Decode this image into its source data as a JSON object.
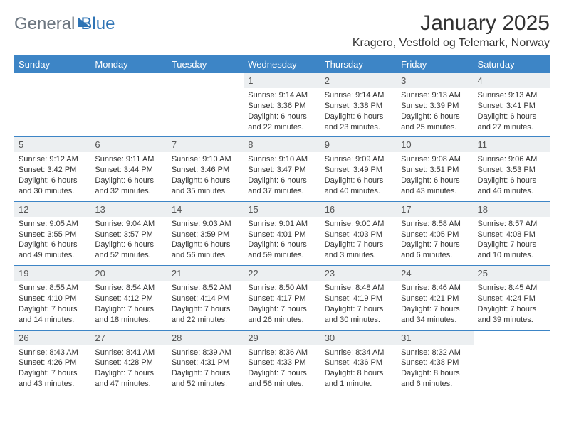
{
  "brand": {
    "word1": "General",
    "word2": "Blue"
  },
  "title": "January 2025",
  "location": "Kragero, Vestfold og Telemark, Norway",
  "colors": {
    "header_bg": "#3d85c6",
    "header_text": "#ffffff",
    "daynum_bg": "#eceff1",
    "row_border": "#3d85c6",
    "logo_gray": "#6c7680",
    "logo_blue": "#2f74b5",
    "page_bg": "#ffffff"
  },
  "weekdays": [
    "Sunday",
    "Monday",
    "Tuesday",
    "Wednesday",
    "Thursday",
    "Friday",
    "Saturday"
  ],
  "weeks": [
    [
      {
        "empty": true
      },
      {
        "empty": true
      },
      {
        "empty": true
      },
      {
        "day": "1",
        "sunrise": "Sunrise: 9:14 AM",
        "sunset": "Sunset: 3:36 PM",
        "d1": "Daylight: 6 hours",
        "d2": "and 22 minutes."
      },
      {
        "day": "2",
        "sunrise": "Sunrise: 9:14 AM",
        "sunset": "Sunset: 3:38 PM",
        "d1": "Daylight: 6 hours",
        "d2": "and 23 minutes."
      },
      {
        "day": "3",
        "sunrise": "Sunrise: 9:13 AM",
        "sunset": "Sunset: 3:39 PM",
        "d1": "Daylight: 6 hours",
        "d2": "and 25 minutes."
      },
      {
        "day": "4",
        "sunrise": "Sunrise: 9:13 AM",
        "sunset": "Sunset: 3:41 PM",
        "d1": "Daylight: 6 hours",
        "d2": "and 27 minutes."
      }
    ],
    [
      {
        "day": "5",
        "sunrise": "Sunrise: 9:12 AM",
        "sunset": "Sunset: 3:42 PM",
        "d1": "Daylight: 6 hours",
        "d2": "and 30 minutes."
      },
      {
        "day": "6",
        "sunrise": "Sunrise: 9:11 AM",
        "sunset": "Sunset: 3:44 PM",
        "d1": "Daylight: 6 hours",
        "d2": "and 32 minutes."
      },
      {
        "day": "7",
        "sunrise": "Sunrise: 9:10 AM",
        "sunset": "Sunset: 3:46 PM",
        "d1": "Daylight: 6 hours",
        "d2": "and 35 minutes."
      },
      {
        "day": "8",
        "sunrise": "Sunrise: 9:10 AM",
        "sunset": "Sunset: 3:47 PM",
        "d1": "Daylight: 6 hours",
        "d2": "and 37 minutes."
      },
      {
        "day": "9",
        "sunrise": "Sunrise: 9:09 AM",
        "sunset": "Sunset: 3:49 PM",
        "d1": "Daylight: 6 hours",
        "d2": "and 40 minutes."
      },
      {
        "day": "10",
        "sunrise": "Sunrise: 9:08 AM",
        "sunset": "Sunset: 3:51 PM",
        "d1": "Daylight: 6 hours",
        "d2": "and 43 minutes."
      },
      {
        "day": "11",
        "sunrise": "Sunrise: 9:06 AM",
        "sunset": "Sunset: 3:53 PM",
        "d1": "Daylight: 6 hours",
        "d2": "and 46 minutes."
      }
    ],
    [
      {
        "day": "12",
        "sunrise": "Sunrise: 9:05 AM",
        "sunset": "Sunset: 3:55 PM",
        "d1": "Daylight: 6 hours",
        "d2": "and 49 minutes."
      },
      {
        "day": "13",
        "sunrise": "Sunrise: 9:04 AM",
        "sunset": "Sunset: 3:57 PM",
        "d1": "Daylight: 6 hours",
        "d2": "and 52 minutes."
      },
      {
        "day": "14",
        "sunrise": "Sunrise: 9:03 AM",
        "sunset": "Sunset: 3:59 PM",
        "d1": "Daylight: 6 hours",
        "d2": "and 56 minutes."
      },
      {
        "day": "15",
        "sunrise": "Sunrise: 9:01 AM",
        "sunset": "Sunset: 4:01 PM",
        "d1": "Daylight: 6 hours",
        "d2": "and 59 minutes."
      },
      {
        "day": "16",
        "sunrise": "Sunrise: 9:00 AM",
        "sunset": "Sunset: 4:03 PM",
        "d1": "Daylight: 7 hours",
        "d2": "and 3 minutes."
      },
      {
        "day": "17",
        "sunrise": "Sunrise: 8:58 AM",
        "sunset": "Sunset: 4:05 PM",
        "d1": "Daylight: 7 hours",
        "d2": "and 6 minutes."
      },
      {
        "day": "18",
        "sunrise": "Sunrise: 8:57 AM",
        "sunset": "Sunset: 4:08 PM",
        "d1": "Daylight: 7 hours",
        "d2": "and 10 minutes."
      }
    ],
    [
      {
        "day": "19",
        "sunrise": "Sunrise: 8:55 AM",
        "sunset": "Sunset: 4:10 PM",
        "d1": "Daylight: 7 hours",
        "d2": "and 14 minutes."
      },
      {
        "day": "20",
        "sunrise": "Sunrise: 8:54 AM",
        "sunset": "Sunset: 4:12 PM",
        "d1": "Daylight: 7 hours",
        "d2": "and 18 minutes."
      },
      {
        "day": "21",
        "sunrise": "Sunrise: 8:52 AM",
        "sunset": "Sunset: 4:14 PM",
        "d1": "Daylight: 7 hours",
        "d2": "and 22 minutes."
      },
      {
        "day": "22",
        "sunrise": "Sunrise: 8:50 AM",
        "sunset": "Sunset: 4:17 PM",
        "d1": "Daylight: 7 hours",
        "d2": "and 26 minutes."
      },
      {
        "day": "23",
        "sunrise": "Sunrise: 8:48 AM",
        "sunset": "Sunset: 4:19 PM",
        "d1": "Daylight: 7 hours",
        "d2": "and 30 minutes."
      },
      {
        "day": "24",
        "sunrise": "Sunrise: 8:46 AM",
        "sunset": "Sunset: 4:21 PM",
        "d1": "Daylight: 7 hours",
        "d2": "and 34 minutes."
      },
      {
        "day": "25",
        "sunrise": "Sunrise: 8:45 AM",
        "sunset": "Sunset: 4:24 PM",
        "d1": "Daylight: 7 hours",
        "d2": "and 39 minutes."
      }
    ],
    [
      {
        "day": "26",
        "sunrise": "Sunrise: 8:43 AM",
        "sunset": "Sunset: 4:26 PM",
        "d1": "Daylight: 7 hours",
        "d2": "and 43 minutes."
      },
      {
        "day": "27",
        "sunrise": "Sunrise: 8:41 AM",
        "sunset": "Sunset: 4:28 PM",
        "d1": "Daylight: 7 hours",
        "d2": "and 47 minutes."
      },
      {
        "day": "28",
        "sunrise": "Sunrise: 8:39 AM",
        "sunset": "Sunset: 4:31 PM",
        "d1": "Daylight: 7 hours",
        "d2": "and 52 minutes."
      },
      {
        "day": "29",
        "sunrise": "Sunrise: 8:36 AM",
        "sunset": "Sunset: 4:33 PM",
        "d1": "Daylight: 7 hours",
        "d2": "and 56 minutes."
      },
      {
        "day": "30",
        "sunrise": "Sunrise: 8:34 AM",
        "sunset": "Sunset: 4:36 PM",
        "d1": "Daylight: 8 hours",
        "d2": "and 1 minute."
      },
      {
        "day": "31",
        "sunrise": "Sunrise: 8:32 AM",
        "sunset": "Sunset: 4:38 PM",
        "d1": "Daylight: 8 hours",
        "d2": "and 6 minutes."
      },
      {
        "empty": true
      }
    ]
  ]
}
